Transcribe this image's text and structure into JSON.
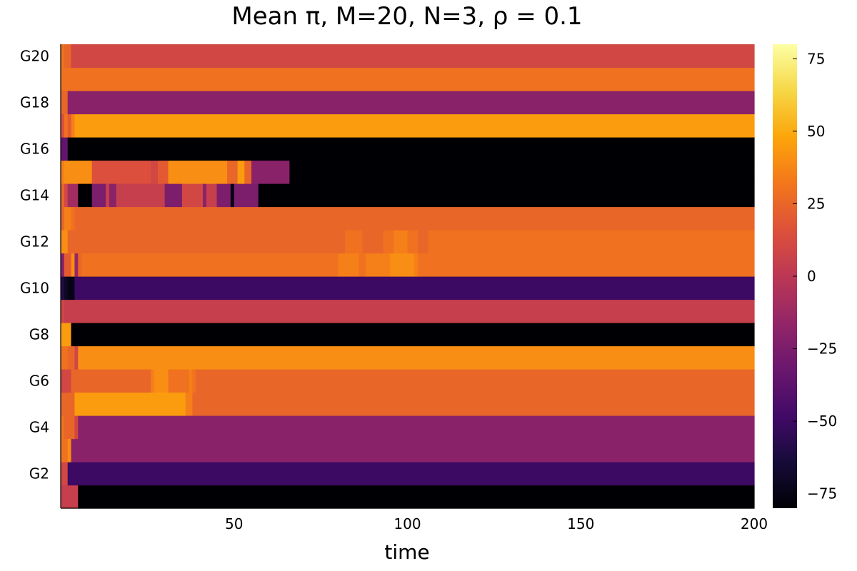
{
  "chart_data": {
    "type": "heatmap",
    "title": "Mean π, M=20, N=3, ρ = 0.1",
    "xlabel": "time",
    "ylabel": "",
    "xlim": [
      1,
      200
    ],
    "x_ticks": [
      50,
      100,
      150,
      200
    ],
    "y_tick_labels": [
      "G2",
      "G4",
      "G6",
      "G8",
      "G10",
      "G12",
      "G14",
      "G16",
      "G18",
      "G20"
    ],
    "rows": [
      "G1",
      "G2",
      "G3",
      "G4",
      "G5",
      "G6",
      "G7",
      "G8",
      "G9",
      "G10",
      "G11",
      "G12",
      "G13",
      "G14",
      "G15",
      "G16",
      "G17",
      "G18",
      "G19",
      "G20"
    ],
    "colorbar": {
      "colormap": "inferno",
      "clim": [
        -80,
        80
      ],
      "ticks": [
        -75,
        -50,
        -25,
        0,
        25,
        50,
        75
      ],
      "tick_labels": [
        "−75",
        "−50",
        "−25",
        "0",
        "25",
        "50",
        "75"
      ]
    },
    "grid": false,
    "segments": {
      "G1": [
        [
          0,
          5,
          5
        ],
        [
          5,
          200,
          -80
        ]
      ],
      "G2": [
        [
          0,
          2,
          10
        ],
        [
          2,
          200,
          -50
        ]
      ],
      "G3": [
        [
          0,
          2,
          30
        ],
        [
          2,
          3,
          40
        ],
        [
          3,
          200,
          -20
        ]
      ],
      "G4": [
        [
          0,
          1,
          30
        ],
        [
          1,
          4,
          25
        ],
        [
          4,
          5,
          10
        ],
        [
          5,
          200,
          -20
        ]
      ],
      "G5": [
        [
          0,
          4,
          25
        ],
        [
          4,
          36,
          45
        ],
        [
          36,
          38,
          35
        ],
        [
          38,
          200,
          25
        ]
      ],
      "G6": [
        [
          0,
          3,
          10
        ],
        [
          3,
          26,
          25
        ],
        [
          26,
          27,
          35
        ],
        [
          27,
          31,
          40
        ],
        [
          31,
          37,
          30
        ],
        [
          37,
          38,
          35
        ],
        [
          38,
          39,
          30
        ],
        [
          39,
          200,
          25
        ]
      ],
      "G7": [
        [
          0,
          2,
          30
        ],
        [
          2,
          4,
          25
        ],
        [
          4,
          5,
          10
        ],
        [
          5,
          200,
          40
        ]
      ],
      "G8": [
        [
          0,
          3,
          45
        ],
        [
          3,
          200,
          -80
        ]
      ],
      "G9": [
        [
          0,
          1,
          10
        ],
        [
          1,
          200,
          5
        ]
      ],
      "G10": [
        [
          0,
          1,
          -60
        ],
        [
          1,
          2,
          -70
        ],
        [
          2,
          4,
          -75
        ],
        [
          4,
          200,
          -50
        ]
      ],
      "G11": [
        [
          0,
          1,
          -20
        ],
        [
          1,
          3,
          20
        ],
        [
          3,
          4,
          40
        ],
        [
          4,
          5,
          -15
        ],
        [
          5,
          6,
          25
        ],
        [
          6,
          80,
          30
        ],
        [
          80,
          86,
          35
        ],
        [
          86,
          88,
          30
        ],
        [
          88,
          95,
          35
        ],
        [
          95,
          102,
          40
        ],
        [
          102,
          103,
          35
        ],
        [
          103,
          200,
          30
        ]
      ],
      "G12": [
        [
          0,
          2,
          40
        ],
        [
          2,
          82,
          25
        ],
        [
          82,
          87,
          30
        ],
        [
          87,
          93,
          25
        ],
        [
          93,
          96,
          30
        ],
        [
          96,
          100,
          35
        ],
        [
          100,
          103,
          30
        ],
        [
          103,
          106,
          25
        ],
        [
          106,
          112,
          30
        ],
        [
          112,
          200,
          30
        ]
      ],
      "G13": [
        [
          0,
          1,
          25
        ],
        [
          1,
          3,
          35
        ],
        [
          3,
          4,
          30
        ],
        [
          4,
          200,
          25
        ]
      ],
      "G14": [
        [
          0,
          1,
          25
        ],
        [
          1,
          2,
          10
        ],
        [
          2,
          5,
          -10
        ],
        [
          5,
          9,
          -80
        ],
        [
          9,
          13,
          -25
        ],
        [
          13,
          14,
          5
        ],
        [
          14,
          16,
          -20
        ],
        [
          16,
          30,
          5
        ],
        [
          30,
          35,
          -25
        ],
        [
          35,
          41,
          10
        ],
        [
          41,
          42,
          -20
        ],
        [
          42,
          45,
          5
        ],
        [
          45,
          49,
          -25
        ],
        [
          49,
          50,
          -75
        ],
        [
          50,
          57,
          -25
        ],
        [
          57,
          200,
          -80
        ]
      ],
      "G15": [
        [
          0,
          1,
          35
        ],
        [
          1,
          9,
          40
        ],
        [
          9,
          26,
          15
        ],
        [
          26,
          28,
          10
        ],
        [
          28,
          31,
          20
        ],
        [
          31,
          48,
          40
        ],
        [
          48,
          51,
          25
        ],
        [
          51,
          53,
          45
        ],
        [
          53,
          55,
          25
        ],
        [
          55,
          66,
          -20
        ],
        [
          66,
          200,
          -80
        ]
      ],
      "G16": [
        [
          0,
          2,
          -35
        ],
        [
          2,
          200,
          -80
        ]
      ],
      "G17": [
        [
          0,
          1,
          15
        ],
        [
          1,
          2,
          30
        ],
        [
          2,
          3,
          20
        ],
        [
          3,
          4,
          35
        ],
        [
          4,
          200,
          45
        ]
      ],
      "G18": [
        [
          0,
          2,
          25
        ],
        [
          2,
          200,
          -20
        ]
      ],
      "G19": [
        [
          0,
          200,
          30
        ]
      ],
      "G20": [
        [
          0,
          1,
          30
        ],
        [
          1,
          3,
          25
        ],
        [
          3,
          200,
          10
        ]
      ]
    }
  }
}
